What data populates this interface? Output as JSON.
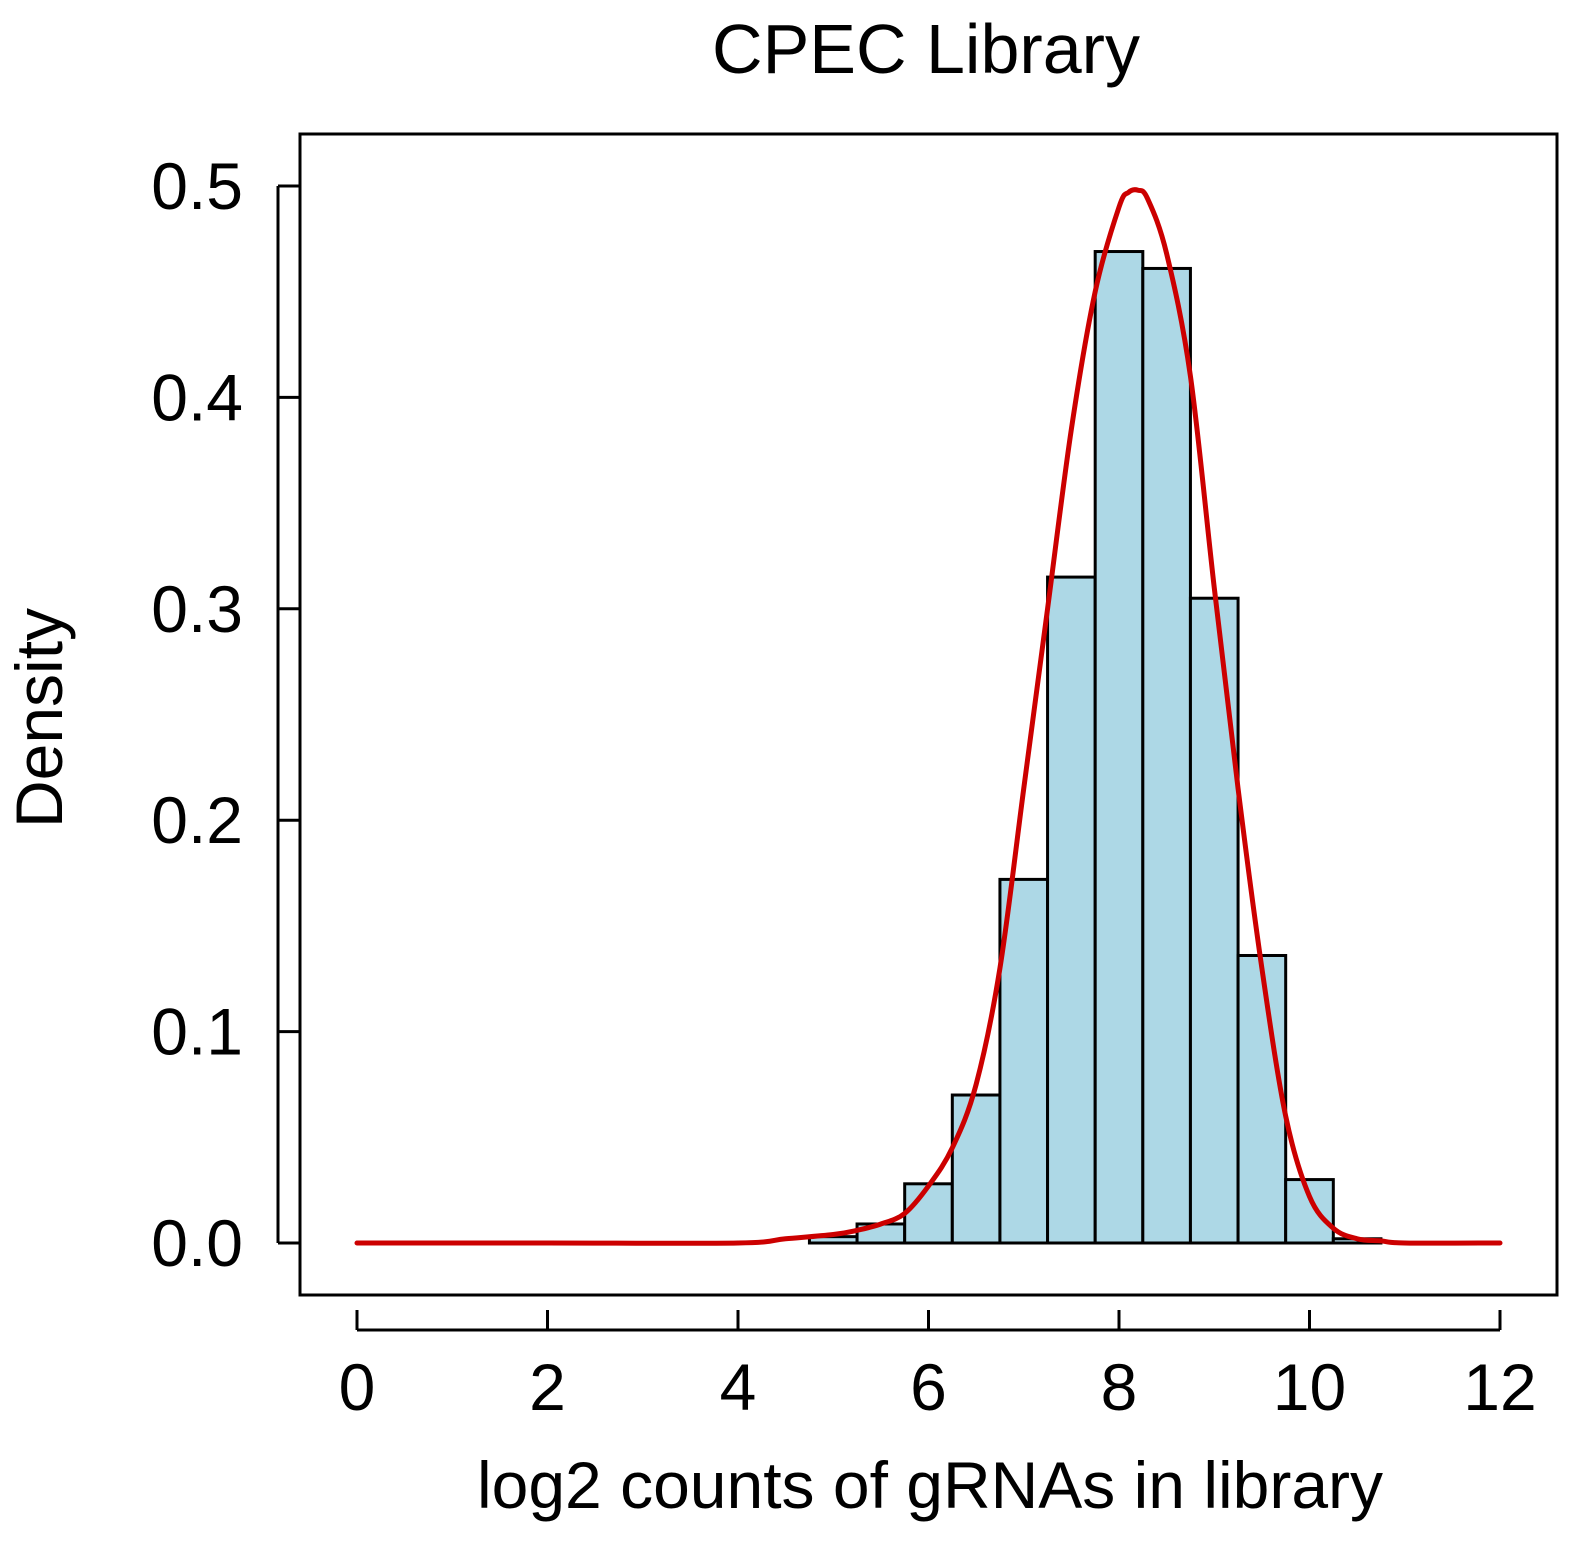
{
  "chart_data": {
    "type": "bar",
    "subtype": "histogram-with-density-curve",
    "title": "CPEC Library",
    "xlabel": "log2 counts of gRNAs in library",
    "ylabel": "Density",
    "xlim": [
      0,
      12
    ],
    "ylim": [
      0,
      0.5
    ],
    "xticks": [
      "0",
      "2",
      "4",
      "6",
      "8",
      "10",
      "12"
    ],
    "yticks": [
      "0.0",
      "0.1",
      "0.2",
      "0.3",
      "0.4",
      "0.5"
    ],
    "grid": false,
    "legend": "none",
    "bin_width": 0.5,
    "bins": [
      {
        "start": 4.75,
        "end": 5.25,
        "density": 0.003
      },
      {
        "start": 5.25,
        "end": 5.75,
        "density": 0.009
      },
      {
        "start": 5.75,
        "end": 6.25,
        "density": 0.028
      },
      {
        "start": 6.25,
        "end": 6.75,
        "density": 0.07
      },
      {
        "start": 6.75,
        "end": 7.25,
        "density": 0.172
      },
      {
        "start": 7.25,
        "end": 7.75,
        "density": 0.315
      },
      {
        "start": 7.75,
        "end": 8.25,
        "density": 0.469
      },
      {
        "start": 8.25,
        "end": 8.75,
        "density": 0.461
      },
      {
        "start": 8.75,
        "end": 9.25,
        "density": 0.305
      },
      {
        "start": 9.25,
        "end": 9.75,
        "density": 0.136
      },
      {
        "start": 9.75,
        "end": 10.25,
        "density": 0.03
      },
      {
        "start": 10.25,
        "end": 10.75,
        "density": 0.002
      }
    ],
    "density_curve": {
      "x": [
        0,
        2,
        4,
        4.5,
        5,
        5.25,
        5.5,
        5.75,
        6,
        6.25,
        6.5,
        6.75,
        7,
        7.25,
        7.5,
        7.75,
        8,
        8.1,
        8.2,
        8.3,
        8.5,
        8.75,
        9,
        9.25,
        9.5,
        9.75,
        10,
        10.25,
        10.5,
        10.75,
        11,
        12
      ],
      "y": [
        0,
        0,
        0,
        0.002,
        0.004,
        0.006,
        0.009,
        0.014,
        0.027,
        0.045,
        0.075,
        0.13,
        0.215,
        0.3,
        0.385,
        0.45,
        0.49,
        0.497,
        0.498,
        0.494,
        0.468,
        0.41,
        0.31,
        0.215,
        0.13,
        0.06,
        0.022,
        0.007,
        0.002,
        0.001,
        0,
        0
      ]
    },
    "colors": {
      "bar_fill": "#ADD8E6",
      "bar_stroke": "#000000",
      "curve": "#CC0000"
    }
  }
}
